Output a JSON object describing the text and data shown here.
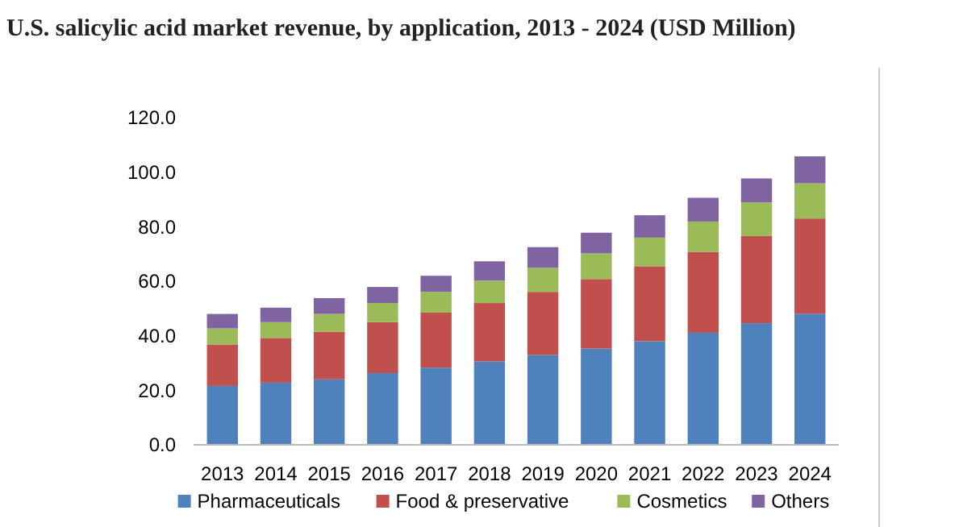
{
  "chart_data": {
    "type": "bar",
    "stacked": true,
    "title": "U.S. salicylic acid market revenue, by application, 2013 - 2024 (USD Million)",
    "categories": [
      "2013",
      "2014",
      "2015",
      "2016",
      "2017",
      "2018",
      "2019",
      "2020",
      "2021",
      "2022",
      "2023",
      "2024"
    ],
    "series": [
      {
        "name": "Pharmaceuticals",
        "color": "#4f81bd",
        "values": [
          21.6,
          22.8,
          24.0,
          26.3,
          28.3,
          30.6,
          32.9,
          35.3,
          38.0,
          41.1,
          44.6,
          48.1
        ]
      },
      {
        "name": "Food & preservative",
        "color": "#c0504d",
        "values": [
          15.2,
          16.4,
          17.5,
          18.7,
          20.2,
          21.4,
          23.2,
          25.5,
          27.5,
          29.7,
          32.0,
          34.9
        ]
      },
      {
        "name": "Cosmetics",
        "color": "#9bbb59",
        "values": [
          5.9,
          5.8,
          6.5,
          7.0,
          7.6,
          8.2,
          8.8,
          9.4,
          10.5,
          11.1,
          12.3,
          12.9
        ]
      },
      {
        "name": "Others",
        "color": "#8064a2",
        "values": [
          5.3,
          5.3,
          5.8,
          5.9,
          5.9,
          7.1,
          7.6,
          7.6,
          8.2,
          8.7,
          8.8,
          9.9
        ]
      }
    ],
    "ylim": [
      0,
      120
    ],
    "yticks": [
      {
        "value": 0,
        "label": "0.0"
      },
      {
        "value": 20,
        "label": "20.0"
      },
      {
        "value": 40,
        "label": "40.0"
      },
      {
        "value": 60,
        "label": "60.0"
      },
      {
        "value": 80,
        "label": "80.0"
      },
      {
        "value": 100,
        "label": "100.0"
      },
      {
        "value": 120,
        "label": "120.0"
      }
    ],
    "grid": false,
    "legend": "bottom"
  }
}
